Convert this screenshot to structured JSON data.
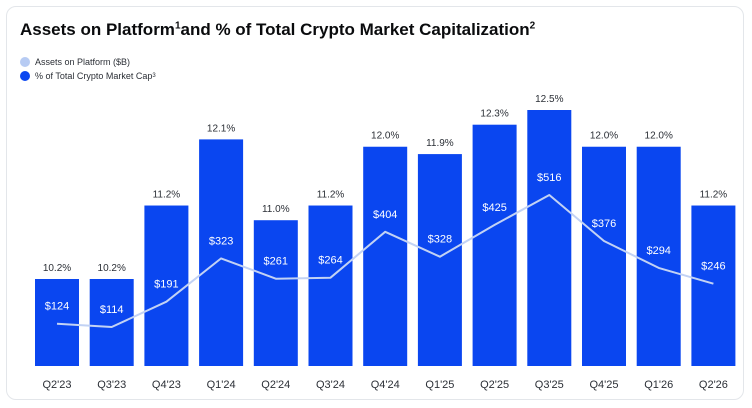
{
  "title": {
    "main": "Assets on Platform",
    "sup1": "1",
    "rest": "and % of Total Crypto Market Capitalization",
    "sup2": "2"
  },
  "legend": {
    "assets_label": "Assets on Platform ($B)",
    "pct_label": "% of Total Crypto Market Cap",
    "pct_sup": "3"
  },
  "colors": {
    "bar": "#0a46f0",
    "line": "#c2d2f4",
    "assets_dot": "#b7cbf3",
    "pct_dot": "#0a46f0"
  },
  "chart_data": {
    "type": "bar",
    "categories": [
      "Q2'23",
      "Q3'23",
      "Q4'23",
      "Q1'24",
      "Q2'24",
      "Q3'24",
      "Q4'24",
      "Q1'25",
      "Q2'25",
      "Q3'25",
      "Q4'25",
      "Q1'26",
      "Q2'26"
    ],
    "series": [
      {
        "name": "% of Total Crypto Market Cap",
        "type": "bar",
        "values": [
          10.2,
          10.2,
          11.2,
          12.1,
          11.0,
          11.2,
          12.0,
          11.9,
          12.3,
          12.5,
          12.0,
          12.0,
          11.2
        ],
        "labels": [
          "10.2%",
          "10.2%",
          "11.2%",
          "12.1%",
          "11.0%",
          "11.2%",
          "12.0%",
          "11.9%",
          "12.3%",
          "12.5%",
          "12.0%",
          "12.0%",
          "11.2%"
        ]
      },
      {
        "name": "Assets on Platform ($B)",
        "type": "line",
        "values": [
          124,
          114,
          191,
          323,
          261,
          264,
          404,
          328,
          425,
          516,
          376,
          294,
          246
        ],
        "labels": [
          "$124",
          "$114",
          "$191",
          "$323",
          "$261",
          "$264",
          "$404",
          "$328",
          "$425",
          "$516",
          "$376",
          "$294",
          "$246"
        ]
      }
    ],
    "grid": false,
    "legend_position": "top-left"
  }
}
